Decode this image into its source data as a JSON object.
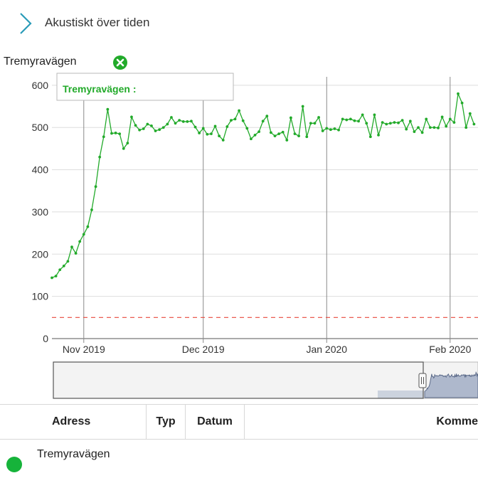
{
  "header": {
    "title": "Akustiskt över tiden"
  },
  "series_toggle": {
    "label": "Tremyravägen",
    "icon": "close-circle-icon",
    "color": "#22aa2a"
  },
  "chart_data": {
    "type": "line",
    "series": [
      {
        "name": "Tremyravägen",
        "color": "#22aa2a",
        "points": [
          [
            "2019-10-24",
            144
          ],
          [
            "2019-10-25",
            148
          ],
          [
            "2019-10-26",
            163
          ],
          [
            "2019-10-27",
            172
          ],
          [
            "2019-10-28",
            183
          ],
          [
            "2019-10-29",
            217
          ],
          [
            "2019-10-30",
            202
          ],
          [
            "2019-10-31",
            230
          ],
          [
            "2019-11-01",
            247
          ],
          [
            "2019-11-02",
            265
          ],
          [
            "2019-11-03",
            305
          ],
          [
            "2019-11-04",
            360
          ],
          [
            "2019-11-05",
            430
          ],
          [
            "2019-11-06",
            478
          ],
          [
            "2019-11-07",
            543
          ],
          [
            "2019-11-08",
            486
          ],
          [
            "2019-11-09",
            487
          ],
          [
            "2019-11-10",
            485
          ],
          [
            "2019-11-11",
            450
          ],
          [
            "2019-11-12",
            463
          ],
          [
            "2019-11-13",
            525
          ],
          [
            "2019-11-14",
            505
          ],
          [
            "2019-11-15",
            494
          ],
          [
            "2019-11-16",
            497
          ],
          [
            "2019-11-17",
            508
          ],
          [
            "2019-11-18",
            504
          ],
          [
            "2019-11-19",
            492
          ],
          [
            "2019-11-20",
            495
          ],
          [
            "2019-11-21",
            500
          ],
          [
            "2019-11-22",
            508
          ],
          [
            "2019-11-23",
            524
          ],
          [
            "2019-11-24",
            510
          ],
          [
            "2019-11-25",
            517
          ],
          [
            "2019-11-26",
            514
          ],
          [
            "2019-11-27",
            514
          ],
          [
            "2019-11-28",
            515
          ],
          [
            "2019-11-29",
            501
          ],
          [
            "2019-11-30",
            487
          ],
          [
            "2019-12-01",
            498
          ],
          [
            "2019-12-02",
            484
          ],
          [
            "2019-12-03",
            485
          ],
          [
            "2019-12-04",
            503
          ],
          [
            "2019-12-05",
            480
          ],
          [
            "2019-12-06",
            470
          ],
          [
            "2019-12-07",
            502
          ],
          [
            "2019-12-08",
            517
          ],
          [
            "2019-12-09",
            520
          ],
          [
            "2019-12-10",
            540
          ],
          [
            "2019-12-11",
            516
          ],
          [
            "2019-12-12",
            498
          ],
          [
            "2019-12-13",
            473
          ],
          [
            "2019-12-14",
            482
          ],
          [
            "2019-12-15",
            490
          ],
          [
            "2019-12-16",
            515
          ],
          [
            "2019-12-17",
            527
          ],
          [
            "2019-12-18",
            488
          ],
          [
            "2019-12-19",
            480
          ],
          [
            "2019-12-20",
            485
          ],
          [
            "2019-12-21",
            489
          ],
          [
            "2019-12-22",
            470
          ],
          [
            "2019-12-23",
            523
          ],
          [
            "2019-12-24",
            485
          ],
          [
            "2019-12-25",
            480
          ],
          [
            "2019-12-26",
            550
          ],
          [
            "2019-12-27",
            478
          ],
          [
            "2019-12-28",
            510
          ],
          [
            "2019-12-29",
            510
          ],
          [
            "2019-12-30",
            524
          ],
          [
            "2019-12-31",
            492
          ],
          [
            "2020-01-01",
            498
          ],
          [
            "2020-01-02",
            495
          ],
          [
            "2020-01-03",
            497
          ],
          [
            "2020-01-04",
            494
          ],
          [
            "2020-01-05",
            520
          ],
          [
            "2020-01-06",
            518
          ],
          [
            "2020-01-07",
            520
          ],
          [
            "2020-01-08",
            516
          ],
          [
            "2020-01-09",
            515
          ],
          [
            "2020-01-10",
            530
          ],
          [
            "2020-01-11",
            510
          ],
          [
            "2020-01-12",
            478
          ],
          [
            "2020-01-13",
            530
          ],
          [
            "2020-01-14",
            482
          ],
          [
            "2020-01-15",
            512
          ],
          [
            "2020-01-16",
            508
          ],
          [
            "2020-01-17",
            510
          ],
          [
            "2020-01-18",
            512
          ],
          [
            "2020-01-19",
            511
          ],
          [
            "2020-01-20",
            517
          ],
          [
            "2020-01-21",
            496
          ],
          [
            "2020-01-22",
            515
          ],
          [
            "2020-01-23",
            490
          ],
          [
            "2020-01-24",
            500
          ],
          [
            "2020-01-25",
            488
          ],
          [
            "2020-01-26",
            520
          ],
          [
            "2020-01-27",
            500
          ],
          [
            "2020-01-28",
            500
          ],
          [
            "2020-01-29",
            499
          ],
          [
            "2020-01-30",
            525
          ],
          [
            "2020-01-31",
            503
          ],
          [
            "2020-02-01",
            520
          ],
          [
            "2020-02-02",
            512
          ],
          [
            "2020-02-03",
            580
          ],
          [
            "2020-02-04",
            558
          ],
          [
            "2020-02-05",
            500
          ],
          [
            "2020-02-06",
            533
          ],
          [
            "2020-02-07",
            508
          ]
        ]
      }
    ],
    "threshold": {
      "value": 50,
      "color": "#e8473c"
    },
    "x_ticks": [
      {
        "label": "Nov 2019",
        "date": "2019-11-01"
      },
      {
        "label": "Dec 2019",
        "date": "2019-12-01"
      },
      {
        "label": "Jan 2020",
        "date": "2020-01-01"
      },
      {
        "label": "Feb 2020",
        "date": "2020-02-01"
      }
    ],
    "x_range": [
      "2019-10-24",
      "2020-02-08"
    ],
    "y_ticks": [
      0,
      100,
      200,
      300,
      400,
      500,
      600
    ],
    "ylim": [
      0,
      620
    ],
    "tooltip": "Tremyravägen :",
    "grid": true
  },
  "navigator": {
    "selected_fraction": [
      0,
      0.85
    ]
  },
  "table": {
    "columns": [
      "Adress",
      "Typ",
      "Datum",
      "Komme"
    ],
    "rows": [
      {
        "address": "Tremyravägen",
        "status_color": "#16b33a"
      }
    ]
  }
}
